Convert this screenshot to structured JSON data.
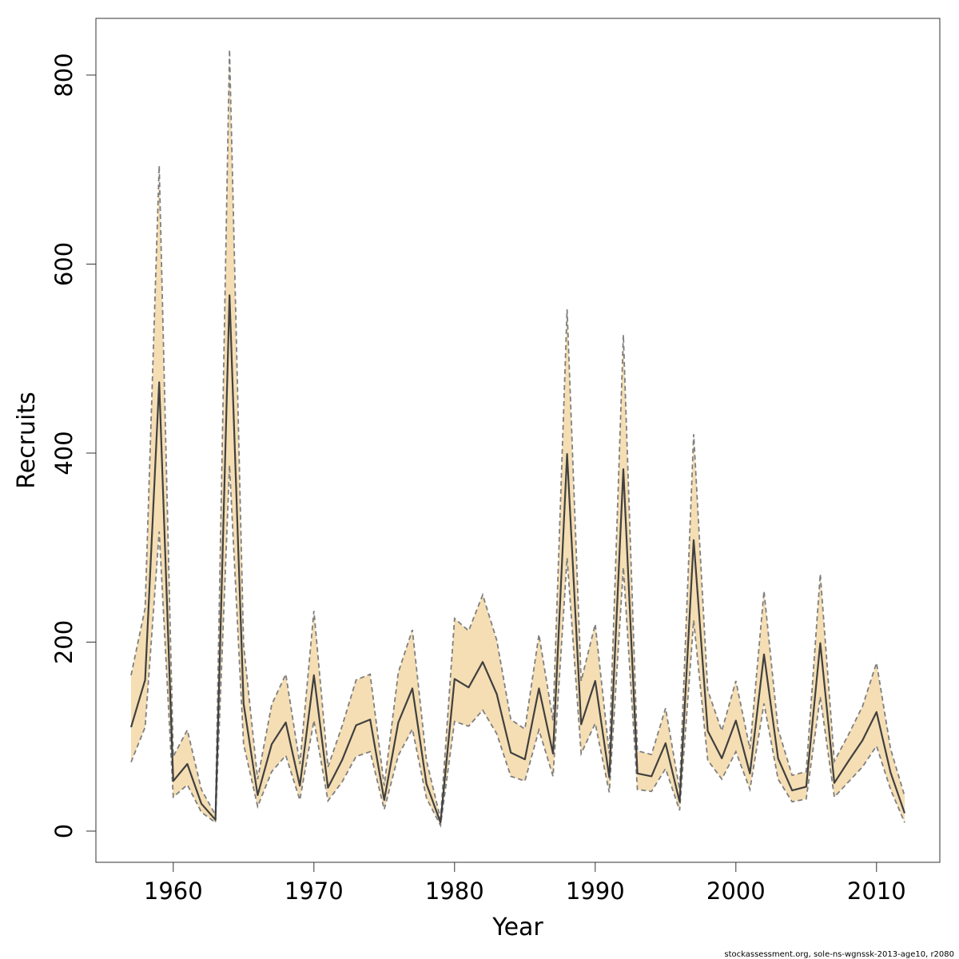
{
  "chart_data": {
    "type": "area",
    "title": "",
    "xlabel": "Year",
    "ylabel": "Recruits",
    "xlim": [
      1954.5,
      2014.5
    ],
    "ylim": [
      -33,
      860
    ],
    "xticks": [
      "1960",
      "1970",
      "1980",
      "1990",
      "2000",
      "2010"
    ],
    "xtick_values": [
      1960,
      1970,
      1980,
      1990,
      2000,
      2010
    ],
    "yticks": [
      "0",
      "200",
      "400",
      "600",
      "800"
    ],
    "ytick_values": [
      0,
      200,
      400,
      600,
      800
    ],
    "grid": false,
    "colors": {
      "band_fill": "#f5deb3",
      "band_edge": "#7f7f7f",
      "line": "#404040",
      "frame": "#333333"
    },
    "x": [
      1957,
      1958,
      1959,
      1960,
      1961,
      1962,
      1963,
      1964,
      1965,
      1966,
      1967,
      1968,
      1969,
      1970,
      1971,
      1972,
      1973,
      1974,
      1975,
      1976,
      1977,
      1978,
      1979,
      1980,
      1981,
      1982,
      1983,
      1984,
      1985,
      1986,
      1987,
      1988,
      1989,
      1990,
      1991,
      1992,
      1993,
      1994,
      1995,
      1996,
      1997,
      1998,
      1999,
      2000,
      2001,
      2002,
      2003,
      2004,
      2005,
      2006,
      2007,
      2008,
      2009,
      2010,
      2011,
      2012
    ],
    "series": [
      {
        "name": "Recruits",
        "values": [
          110,
          160,
          475,
          53,
          71,
          29,
          12,
          567,
          135,
          38,
          92,
          115,
          48,
          165,
          46,
          75,
          112,
          118,
          33,
          115,
          151,
          50,
          9,
          161,
          152,
          179,
          145,
          83,
          76,
          151,
          82,
          399,
          113,
          159,
          57,
          383,
          61,
          58,
          93,
          31,
          308,
          106,
          77,
          117,
          61,
          187,
          77,
          43,
          47,
          199,
          51,
          74,
          96,
          126,
          62,
          19
        ]
      },
      {
        "name": "upper",
        "values": [
          165,
          236,
          704,
          79,
          107,
          44,
          17,
          827,
          197,
          55,
          134,
          166,
          71,
          233,
          68,
          111,
          160,
          166,
          48,
          168,
          213,
          75,
          13,
          225,
          212,
          250,
          202,
          118,
          108,
          208,
          117,
          552,
          159,
          219,
          82,
          525,
          85,
          81,
          130,
          44,
          420,
          149,
          106,
          159,
          87,
          254,
          108,
          59,
          63,
          272,
          74,
          102,
          132,
          178,
          87,
          37
        ]
      },
      {
        "name": "lower",
        "values": [
          73,
          110,
          317,
          36,
          49,
          20,
          9,
          387,
          92,
          26,
          63,
          80,
          33,
          117,
          32,
          52,
          79,
          84,
          23,
          80,
          108,
          35,
          6,
          116,
          111,
          128,
          103,
          58,
          53,
          107,
          58,
          289,
          82,
          114,
          41,
          279,
          44,
          42,
          66,
          22,
          223,
          75,
          55,
          84,
          44,
          135,
          55,
          31,
          34,
          142,
          36,
          52,
          68,
          90,
          44,
          9
        ]
      }
    ]
  },
  "caption": "stockassessment.org, sole-ns-wgnssk-2013-age10, r2080"
}
